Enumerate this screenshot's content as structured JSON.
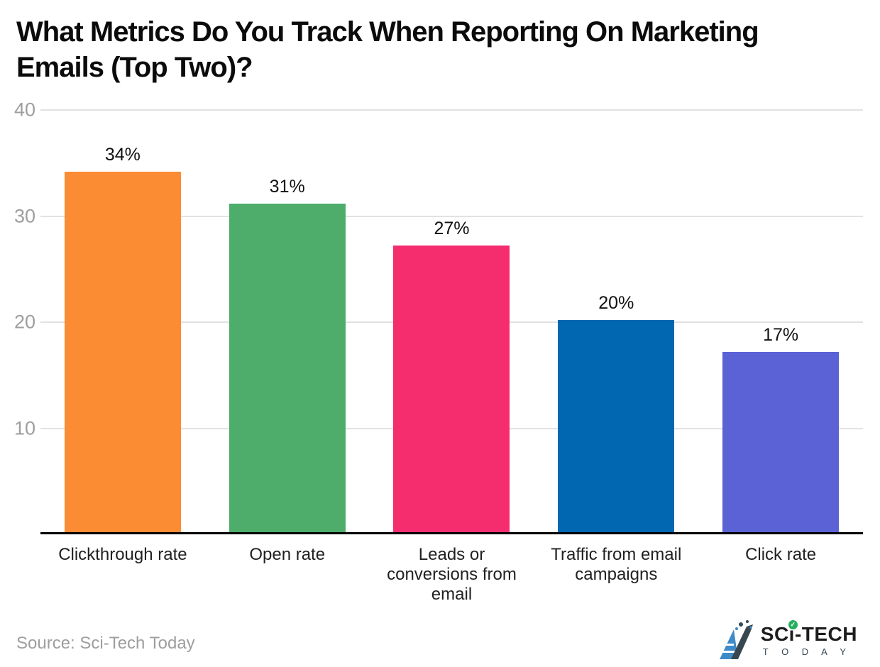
{
  "header": {
    "title_line1": "What Metrics Do You Track When Reporting On Marketing",
    "title_line2": "Emails (Top Two)?"
  },
  "chart_data": {
    "type": "bar",
    "title": "What Metrics Do You Track When Reporting On Marketing Emails (Top Two)?",
    "categories": [
      "Clickthrough rate",
      "Open rate",
      "Leads or conversions from email",
      "Traffic from email campaigns",
      "Click rate"
    ],
    "values": [
      34,
      31,
      27,
      20,
      17
    ],
    "value_labels": [
      "34%",
      "31%",
      "27%",
      "20%",
      "17%"
    ],
    "bar_colors": [
      "#FB8C34",
      "#4FAD6C",
      "#F52D6E",
      "#0267B1",
      "#5A62D6"
    ],
    "xlabel": "",
    "ylabel": "",
    "ylim": [
      0,
      40
    ],
    "yticks": [
      40,
      30,
      20,
      10
    ],
    "grid": true,
    "legend": false,
    "gridline_color": "#e2e2e2",
    "axis_color": "#000000"
  },
  "footer": {
    "source": "Source: Sci-Tech Today",
    "logo": {
      "line1": "SCi-TECH",
      "line2": "T O D A Y",
      "check_glyph": "✓"
    }
  }
}
